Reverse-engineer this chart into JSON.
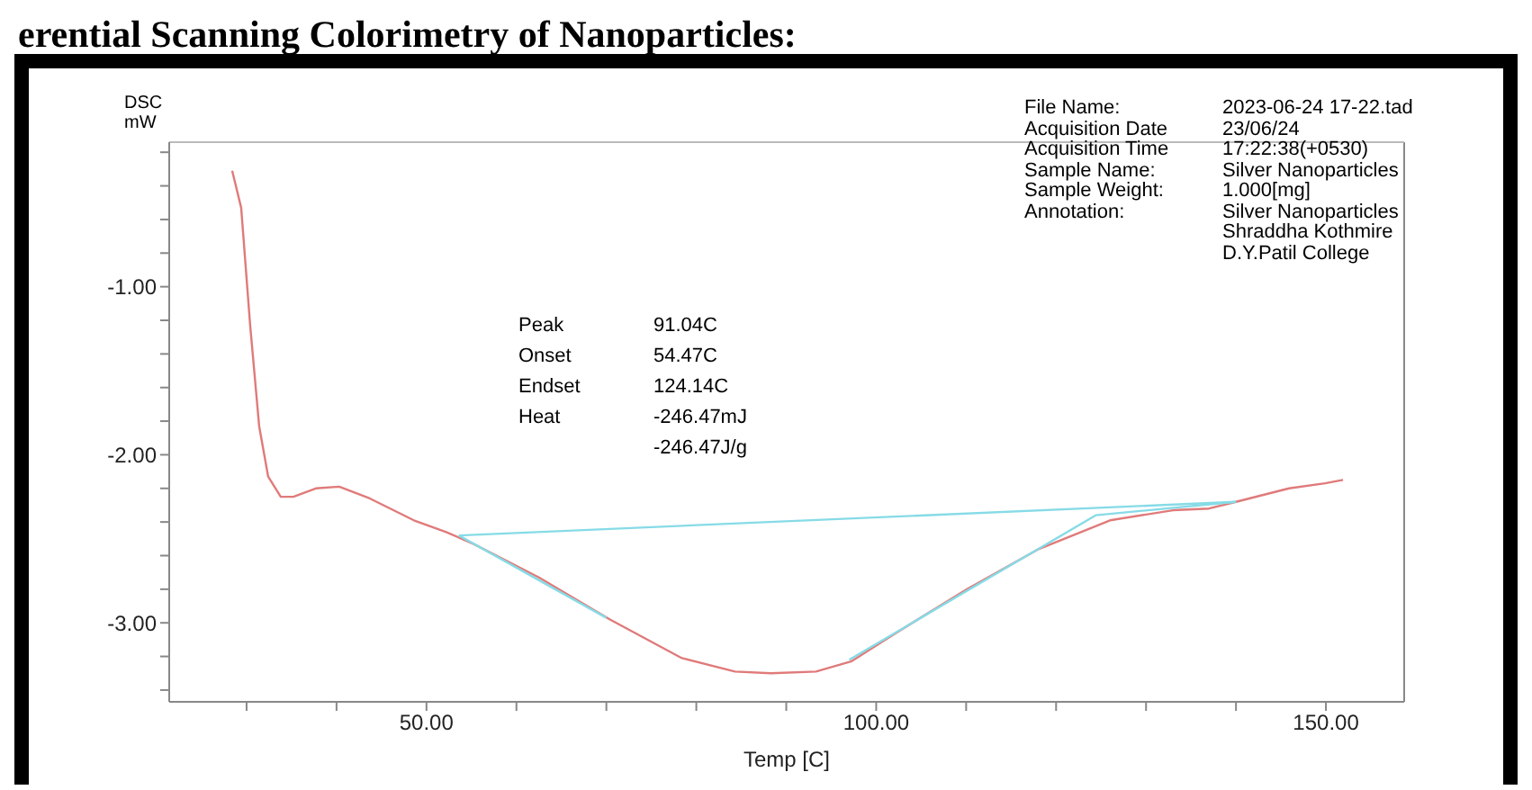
{
  "chart_data": {
    "type": "line",
    "title": "erential Scanning Colorimetry of Nanoparticles:",
    "xlabel": "Temp  [C]",
    "ylabel": "DSC mW",
    "xlim": [
      21.4,
      158.7
    ],
    "ylim": [
      -3.47,
      -0.14
    ],
    "xticks": [
      {
        "value": 30,
        "label": null
      },
      {
        "value": 40,
        "label": null
      },
      {
        "value": 50,
        "label": "50.00"
      },
      {
        "value": 60,
        "label": null
      },
      {
        "value": 70,
        "label": null
      },
      {
        "value": 80,
        "label": null
      },
      {
        "value": 90,
        "label": null
      },
      {
        "value": 100,
        "label": "100.00"
      },
      {
        "value": 110,
        "label": null
      },
      {
        "value": 120,
        "label": null
      },
      {
        "value": 130,
        "label": null
      },
      {
        "value": 140,
        "label": null
      },
      {
        "value": 150,
        "label": "150.00"
      }
    ],
    "yticks": [
      {
        "value": -3.4,
        "label": null
      },
      {
        "value": -3.2,
        "label": null
      },
      {
        "value": -3,
        "label": "-3.00"
      },
      {
        "value": -2.8,
        "label": null
      },
      {
        "value": -2.6,
        "label": null
      },
      {
        "value": -2.4,
        "label": null
      },
      {
        "value": -2.2,
        "label": null
      },
      {
        "value": -2,
        "label": "-2.00"
      },
      {
        "value": -1.8,
        "label": null
      },
      {
        "value": -1.6,
        "label": null
      },
      {
        "value": -1.4,
        "label": null
      },
      {
        "value": -1.2,
        "label": null
      },
      {
        "value": -1,
        "label": "-1.00"
      },
      {
        "value": -0.8,
        "label": null
      },
      {
        "value": -0.6,
        "label": null
      },
      {
        "value": -0.4,
        "label": null
      },
      {
        "value": -0.2,
        "label": null
      }
    ],
    "grid": false,
    "marker": "none",
    "line_style": "solid",
    "series": [
      {
        "color": "#e07a7a",
        "x": [
          28.4,
          29.4,
          30.4,
          31.4,
          32.4,
          33.8,
          35.2,
          37.7,
          40.3,
          43.7,
          48.6,
          52.2,
          55.2,
          62.5,
          70.4,
          78.4,
          84.3,
          88.3,
          93.3,
          97.2,
          102.2,
          110.1,
          118.1,
          126.0,
          133.0,
          137.0,
          140.0,
          145.9,
          149.9,
          151.9
        ],
        "values": [
          -0.31,
          -0.53,
          -1.23,
          -1.83,
          -2.13,
          -2.25,
          -2.25,
          -2.2,
          -2.19,
          -2.26,
          -2.39,
          -2.46,
          -2.53,
          -2.73,
          -2.98,
          -3.21,
          -3.29,
          -3.3,
          -3.29,
          -3.23,
          -3.06,
          -2.8,
          -2.56,
          -2.39,
          -2.33,
          -2.32,
          -2.28,
          -2.2,
          -2.17,
          -2.15
        ]
      },
      {
        "color": "#86dbe6",
        "x": [
          53.6,
          140.0
        ],
        "values": [
          -2.48,
          -2.28
        ]
      },
      {
        "color": "#86dbe6",
        "x": [
          53.6,
          70.0
        ],
        "values": [
          -2.48,
          -2.97
        ]
      },
      {
        "color": "#86dbe6",
        "x": [
          97.0,
          124.4,
          140.0
        ],
        "values": [
          -3.22,
          -2.36,
          -2.28
        ]
      }
    ],
    "annotations": [
      "Peak",
      "91.04C",
      "Onset",
      "54.47C",
      "Endset",
      "124.14C",
      "Heat",
      "-246.47mJ",
      "-246.47J/g",
      "File Name:",
      "2023-06-24 17-22.tad",
      "Acquisition Date",
      "23/06/24",
      "Acquisition Time",
      "17:22:38(+0530)",
      "Sample Name:",
      "Silver Nanoparticles",
      "Sample Weight:",
      "1.000[mg]",
      "Annotation:",
      "Silver Nanoparticles",
      "Shraddha Kothmire",
      "D.Y.Patil College"
    ]
  }
}
